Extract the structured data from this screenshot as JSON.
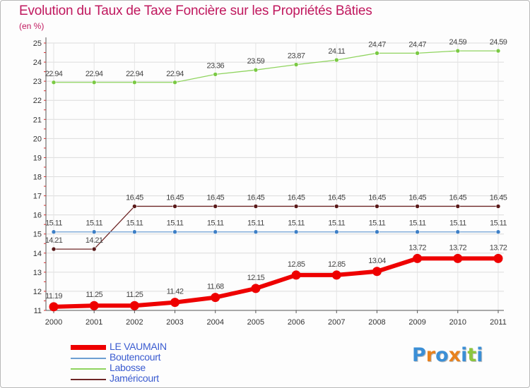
{
  "chart_data": {
    "type": "line",
    "title": "Evolution du Taux de Taxe Foncière sur les Propriétés Bâties",
    "subtitle": "(en %)",
    "xlabel": "",
    "ylabel": "",
    "categories": [
      "2000",
      "2001",
      "2002",
      "2003",
      "2004",
      "2005",
      "2006",
      "2007",
      "2008",
      "2009",
      "2010",
      "2011"
    ],
    "ylim": [
      11,
      25
    ],
    "yticks": [
      11,
      12,
      13,
      14,
      15,
      16,
      17,
      18,
      19,
      20,
      21,
      22,
      23,
      24,
      25
    ],
    "grid": true,
    "legend_position": "bottom-left",
    "series": [
      {
        "name": "Labosse",
        "color": "#8fd45e",
        "marker": "#7ac943",
        "width": 1.3,
        "values": [
          22.94,
          22.94,
          22.94,
          22.94,
          23.36,
          23.59,
          23.87,
          24.11,
          24.47,
          24.47,
          24.59,
          24.59
        ],
        "labels": [
          "22.94",
          "22.94",
          "22.94",
          "22.94",
          "23.36",
          "23.59",
          "23.87",
          "24.11",
          "24.47",
          "24.47",
          "24.59",
          "24.59"
        ]
      },
      {
        "name": "Jaméricourt",
        "color": "#6e2626",
        "marker": "#5a1a1a",
        "width": 1.3,
        "values": [
          14.21,
          14.21,
          16.45,
          16.45,
          16.45,
          16.45,
          16.45,
          16.45,
          16.45,
          16.45,
          16.45,
          16.45
        ],
        "labels": [
          "14.21",
          "14.21",
          "16.45",
          "16.45",
          "16.45",
          "16.45",
          "16.45",
          "16.45",
          "16.45",
          "16.45",
          "16.45",
          "16.45"
        ]
      },
      {
        "name": "Boutencourt",
        "color": "#6d9fd2",
        "marker": "#3d7fc6",
        "width": 1.3,
        "values": [
          15.11,
          15.11,
          15.11,
          15.11,
          15.11,
          15.11,
          15.11,
          15.11,
          15.11,
          15.11,
          15.11,
          15.11
        ],
        "labels": [
          "15.11",
          "15.11",
          "15.11",
          "15.11",
          "15.11",
          "15.11",
          "15.11",
          "15.11",
          "15.11",
          "15.11",
          "15.11",
          "15.11"
        ]
      },
      {
        "name": "LE VAUMAIN",
        "color": "#ee0000",
        "marker": "#ee0000",
        "width": 6,
        "values": [
          11.19,
          11.25,
          11.25,
          11.42,
          11.68,
          12.15,
          12.85,
          12.85,
          13.04,
          13.72,
          13.72,
          13.72
        ],
        "labels": [
          "11.19",
          "11.25",
          "11.25",
          "11.42",
          "11.68",
          "12.15",
          "12.85",
          "12.85",
          "13.04",
          "13.72",
          "13.72",
          "13.72"
        ]
      }
    ],
    "legend": [
      {
        "name": "LE VAUMAIN",
        "color": "#ee0000"
      },
      {
        "name": "Boutencourt",
        "color": "#6d9fd2"
      },
      {
        "name": "Labosse",
        "color": "#8fd45e"
      },
      {
        "name": "Jaméricourt",
        "color": "#6e2626"
      }
    ]
  },
  "logo": {
    "text": "Proxiti",
    "letters": [
      "P",
      "r",
      "o",
      "x",
      "i",
      "t",
      "i"
    ],
    "colors": [
      "#3b8fd6",
      "#e8821e",
      "#3b8fd6",
      "#e8821e",
      "#3b8fd6",
      "#8cc63f",
      "#3b8fd6"
    ]
  }
}
